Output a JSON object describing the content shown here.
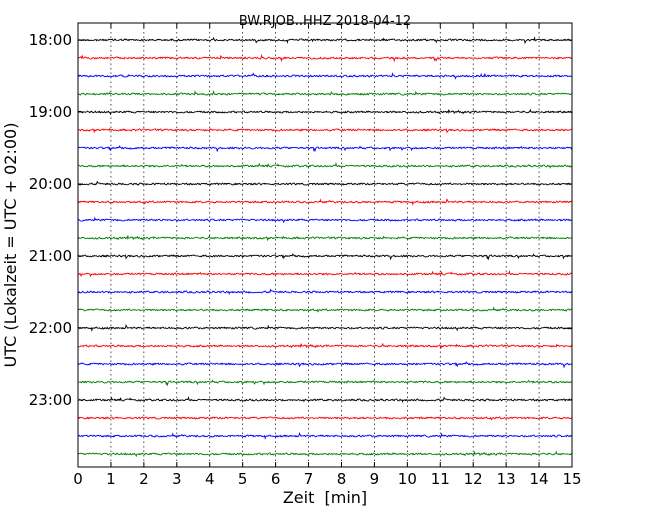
{
  "chart_data": {
    "type": "line",
    "title": "BW.RJOB..HHZ 2018-04-12",
    "xlabel": "Zeit  [min]",
    "ylabel": "UTC (Lokalzeit = UTC + 02:00)",
    "xlim": [
      0,
      15
    ],
    "x_ticks": [
      "0",
      "1",
      "2",
      "3",
      "4",
      "5",
      "6",
      "7",
      "8",
      "9",
      "10",
      "11",
      "12",
      "13",
      "14",
      "15"
    ],
    "y_tick_labels": [
      "18:00",
      "19:00",
      "20:00",
      "21:00",
      "22:00",
      "23:00"
    ],
    "grid": "vertical dotted at each minute",
    "trace_colors": [
      "#000000",
      "#ff0000",
      "#0000ff",
      "#008000"
    ],
    "series": [
      {
        "start": "18:00"
      },
      {
        "start": "18:15"
      },
      {
        "start": "18:30"
      },
      {
        "start": "18:45"
      },
      {
        "start": "19:00"
      },
      {
        "start": "19:15"
      },
      {
        "start": "19:30"
      },
      {
        "start": "19:45"
      },
      {
        "start": "20:00"
      },
      {
        "start": "20:15"
      },
      {
        "start": "20:30"
      },
      {
        "start": "20:45"
      },
      {
        "start": "21:00"
      },
      {
        "start": "21:15"
      },
      {
        "start": "21:30"
      },
      {
        "start": "21:45"
      },
      {
        "start": "22:00"
      },
      {
        "start": "22:15"
      },
      {
        "start": "22:30"
      },
      {
        "start": "22:45"
      },
      {
        "start": "23:00"
      },
      {
        "start": "23:15"
      },
      {
        "start": "23:30"
      },
      {
        "start": "23:45"
      }
    ]
  }
}
